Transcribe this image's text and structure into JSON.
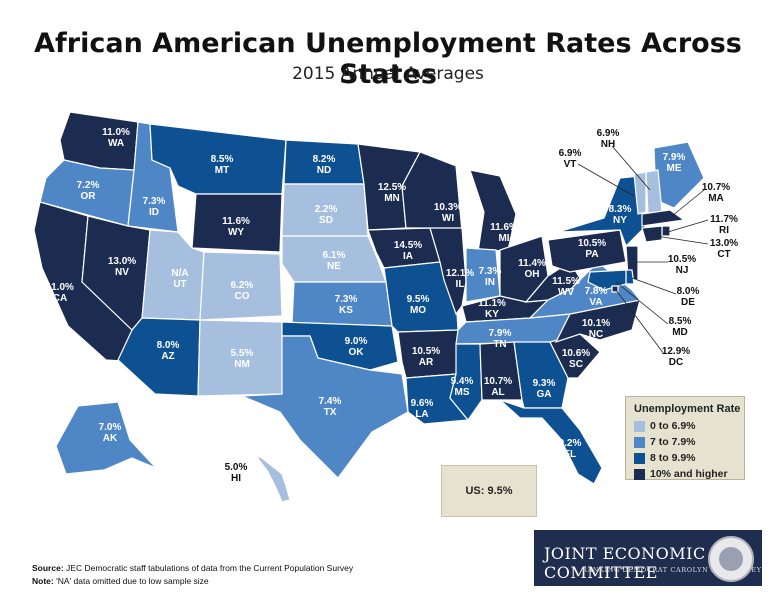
{
  "title": "African American Unemployment Rates Across States",
  "subtitle": "2015 Annual Averages",
  "colors": {
    "bin0": "#a7bfdf",
    "bin1": "#4f86c6",
    "bin2": "#0e5193",
    "bin3": "#1c2b50",
    "na": "#a7bfdf"
  },
  "legend": {
    "title": "Unemployment Rate",
    "items": [
      {
        "label": "0 to 6.9%",
        "color": "#a7bfdf"
      },
      {
        "label": "7 to 7.9%",
        "color": "#4f86c6"
      },
      {
        "label": "8 to 9.9%",
        "color": "#0e5193"
      },
      {
        "label": "10% and higher",
        "color": "#1c2b50"
      }
    ]
  },
  "us_total": "US: 9.5%",
  "notes": {
    "source_label": "Source:",
    "source_text": "JEC Democratic staff tabulations of data from the Current Population Survey",
    "note_label": "Note:",
    "note_text": "'NA' data omitted due to low sample size"
  },
  "logo": {
    "name": "JOINT ECONOMIC COMMITTEE",
    "sub": "RANKING DEMOCRAT CAROLYN B. MALONEY"
  },
  "states": [
    {
      "abbr": "WA",
      "value": "11.0%",
      "bin": 3
    },
    {
      "abbr": "OR",
      "value": "7.2%",
      "bin": 1
    },
    {
      "abbr": "CA",
      "value": "11.0%",
      "bin": 3
    },
    {
      "abbr": "ID",
      "value": "7.3%",
      "bin": 1
    },
    {
      "abbr": "NV",
      "value": "13.0%",
      "bin": 3
    },
    {
      "abbr": "MT",
      "value": "8.5%",
      "bin": 2
    },
    {
      "abbr": "WY",
      "value": "11.6%",
      "bin": 3
    },
    {
      "abbr": "UT",
      "value": "N/A",
      "bin": -1
    },
    {
      "abbr": "AZ",
      "value": "8.0%",
      "bin": 2
    },
    {
      "abbr": "CO",
      "value": "6.2%",
      "bin": 0
    },
    {
      "abbr": "NM",
      "value": "5.5%",
      "bin": 0
    },
    {
      "abbr": "ND",
      "value": "8.2%",
      "bin": 2
    },
    {
      "abbr": "SD",
      "value": "2.2%",
      "bin": 0
    },
    {
      "abbr": "NE",
      "value": "6.1%",
      "bin": 0
    },
    {
      "abbr": "KS",
      "value": "7.3%",
      "bin": 1
    },
    {
      "abbr": "OK",
      "value": "9.0%",
      "bin": 2
    },
    {
      "abbr": "TX",
      "value": "7.4%",
      "bin": 1
    },
    {
      "abbr": "MN",
      "value": "12.5%",
      "bin": 3
    },
    {
      "abbr": "IA",
      "value": "14.5%",
      "bin": 3
    },
    {
      "abbr": "MO",
      "value": "9.5%",
      "bin": 2
    },
    {
      "abbr": "AR",
      "value": "10.5%",
      "bin": 3
    },
    {
      "abbr": "LA",
      "value": "9.6%",
      "bin": 2
    },
    {
      "abbr": "WI",
      "value": "10.3%",
      "bin": 3
    },
    {
      "abbr": "IL",
      "value": "12.1%",
      "bin": 3
    },
    {
      "abbr": "MI",
      "value": "11.6%",
      "bin": 3
    },
    {
      "abbr": "IN",
      "value": "7.3%",
      "bin": 1
    },
    {
      "abbr": "OH",
      "value": "11.4%",
      "bin": 3
    },
    {
      "abbr": "KY",
      "value": "11.1%",
      "bin": 3
    },
    {
      "abbr": "TN",
      "value": "7.9%",
      "bin": 1
    },
    {
      "abbr": "MS",
      "value": "9.4%",
      "bin": 2
    },
    {
      "abbr": "AL",
      "value": "10.7%",
      "bin": 3
    },
    {
      "abbr": "GA",
      "value": "9.3%",
      "bin": 2
    },
    {
      "abbr": "FL",
      "value": "9.2%",
      "bin": 2
    },
    {
      "abbr": "SC",
      "value": "10.6%",
      "bin": 3
    },
    {
      "abbr": "NC",
      "value": "10.1%",
      "bin": 3
    },
    {
      "abbr": "VA",
      "value": "7.8%",
      "bin": 1
    },
    {
      "abbr": "WV",
      "value": "11.5%",
      "bin": 3
    },
    {
      "abbr": "PA",
      "value": "10.5%",
      "bin": 3
    },
    {
      "abbr": "NY",
      "value": "8.3%",
      "bin": 2
    },
    {
      "abbr": "ME",
      "value": "7.9%",
      "bin": 1
    },
    {
      "abbr": "VT",
      "value": "6.9%",
      "bin": 0
    },
    {
      "abbr": "NH",
      "value": "6.9%",
      "bin": 0
    },
    {
      "abbr": "MA",
      "value": "10.7%",
      "bin": 3
    },
    {
      "abbr": "RI",
      "value": "11.7%",
      "bin": 3
    },
    {
      "abbr": "CT",
      "value": "13.0%",
      "bin": 3
    },
    {
      "abbr": "NJ",
      "value": "10.5%",
      "bin": 3
    },
    {
      "abbr": "DE",
      "value": "8.0%",
      "bin": 2
    },
    {
      "abbr": "MD",
      "value": "8.5%",
      "bin": 2
    },
    {
      "abbr": "DC",
      "value": "12.9%",
      "bin": 3
    },
    {
      "abbr": "AK",
      "value": "7.0%",
      "bin": 1
    },
    {
      "abbr": "HI",
      "value": "5.0%",
      "bin": 0
    }
  ]
}
